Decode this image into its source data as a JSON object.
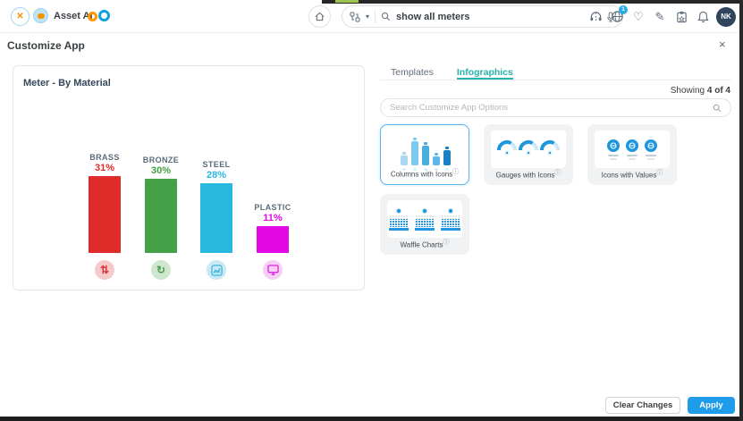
{
  "topnav": {
    "brand": "Asset AI",
    "search_value": "show all meters",
    "avatar": "NK",
    "badge_count": "1",
    "icons": [
      "menu-compass-icon",
      "home-icon",
      "app-picker-icon",
      "search-icon",
      "kebab-icon",
      "microphone-icon",
      "headset-icon",
      "globe-icon",
      "heart-icon",
      "signature-pen-icon",
      "clipboard-icon",
      "bell-icon"
    ]
  },
  "modal": {
    "title": "Customize App",
    "close": "×"
  },
  "chart_data": {
    "type": "bar",
    "title": "Meter - By Material",
    "categories": [
      "BRASS",
      "BRONZE",
      "STEEL",
      "PLASTIC"
    ],
    "values": [
      31,
      30,
      28,
      11
    ],
    "labels": [
      "31%",
      "30%",
      "28%",
      "11%"
    ],
    "unit": "%",
    "colors": [
      "#e02b2b",
      "#43a047",
      "#29b8e0",
      "#e408e4"
    ],
    "chip_icons": [
      "swap-arrows-icon",
      "rotate-arrow-icon",
      "area-chart-icon",
      "monitor-icon"
    ],
    "ylim": [
      0,
      35
    ],
    "grid": false,
    "legend": "none"
  },
  "panel": {
    "tabs": [
      {
        "label": "Templates",
        "active": false
      },
      {
        "label": "Infographics",
        "active": true
      }
    ],
    "showing_label": "Showing",
    "showing_value": "4 of 4",
    "search_placeholder": "Search Customize App Options",
    "cards": [
      {
        "label": "Columns with Icons",
        "selected": true
      },
      {
        "label": "Gauges with Icons",
        "selected": false
      },
      {
        "label": "Icons with Values",
        "selected": false
      },
      {
        "label": "Waffle Charts",
        "selected": false
      }
    ]
  },
  "footer": {
    "clear_label": "Clear Changes",
    "apply_label": "Apply"
  }
}
